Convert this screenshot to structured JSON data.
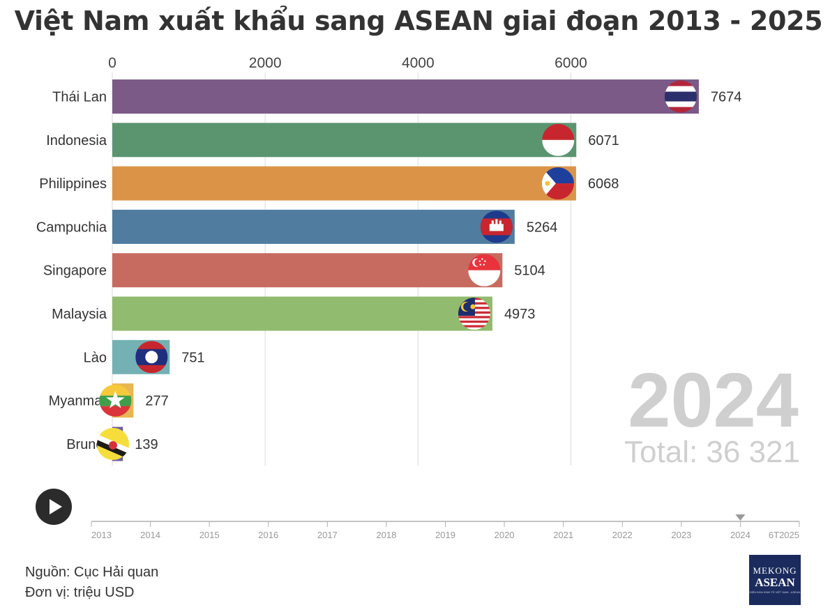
{
  "title": "Việt Nam xuất khẩu sang ASEAN giai đoạn 2013 - 2025",
  "chart_data": {
    "type": "bar",
    "orientation": "horizontal",
    "categories": [
      "Thái Lan",
      "Indonesia",
      "Philippines",
      "Campuchia",
      "Singapore",
      "Malaysia",
      "Lào",
      "Myanmar",
      "Brunei"
    ],
    "values": [
      7674,
      6071,
      6068,
      5264,
      5104,
      4973,
      751,
      277,
      139
    ],
    "value_labels": [
      "7674",
      "6071",
      "6068",
      "5264",
      "5104",
      "4973",
      "751",
      "277",
      "139"
    ],
    "colors": [
      "#7b5a87",
      "#5a9570",
      "#db9447",
      "#507ca0",
      "#c76a60",
      "#91bb6e",
      "#73b1b4",
      "#e8b652",
      "#6f5ea0"
    ],
    "x_ticks": [
      0,
      2000,
      4000,
      6000
    ],
    "x_tick_labels": [
      "0",
      "2000",
      "4000",
      "6000"
    ],
    "x_axis_position": "top",
    "grid": true,
    "current_year": "2024",
    "total_label": "Total: 36 321"
  },
  "flags": [
    "thailand-flag-icon",
    "indonesia-flag-icon",
    "philippines-flag-icon",
    "cambodia-flag-icon",
    "singapore-flag-icon",
    "malaysia-flag-icon",
    "laos-flag-icon",
    "myanmar-flag-icon",
    "brunei-flag-icon"
  ],
  "timeline": {
    "labels": [
      "2013",
      "2014",
      "2015",
      "2016",
      "2017",
      "2018",
      "2019",
      "2020",
      "2021",
      "2022",
      "2023",
      "2024",
      "6T2025"
    ],
    "current": "2024"
  },
  "footer": {
    "source": "Nguồn: Cục Hải quan",
    "unit": "Đơn vị: triệu USD"
  },
  "logo": {
    "line1": "MEKONG",
    "line2": "ASEAN",
    "tagline": "DIỄN ĐÀN KINH TẾ VIỆT NAM - ASEAN"
  }
}
